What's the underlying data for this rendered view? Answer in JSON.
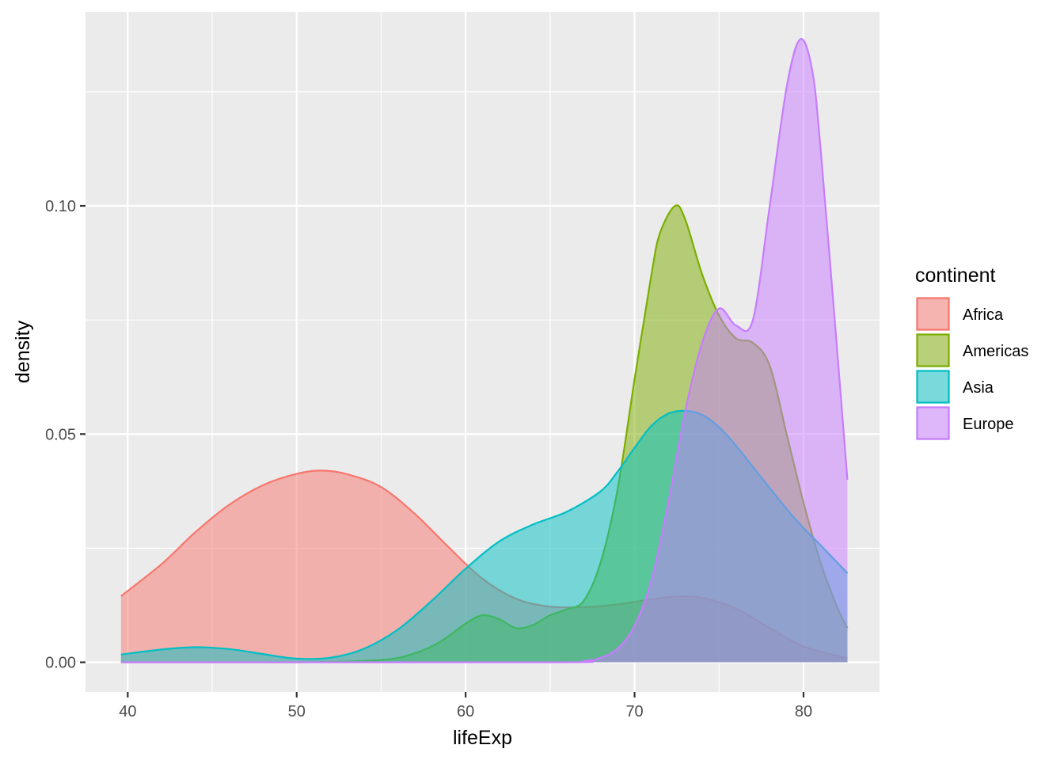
{
  "chart_data": {
    "type": "area",
    "xlabel": "lifeExp",
    "ylabel": "density",
    "xlim": [
      37.5,
      84.5
    ],
    "ylim": [
      -0.0065,
      0.1425
    ],
    "xticks": [
      40,
      50,
      60,
      70,
      80
    ],
    "yticks": [
      0.0,
      0.05,
      0.1
    ],
    "ytick_labels": [
      "0.00",
      "0.05",
      "0.10"
    ],
    "xtick_labels": [
      "40",
      "50",
      "60",
      "70",
      "80"
    ],
    "grid": true,
    "legend": {
      "title": "continent",
      "position": "right"
    },
    "fill_opacity": 0.5,
    "series": [
      {
        "name": "Africa",
        "color": "#F8766D",
        "x": [
          39.6,
          42,
          44,
          46,
          48,
          50,
          51.5,
          53,
          55,
          57,
          59,
          61,
          63,
          65,
          67,
          69,
          71,
          72.5,
          74,
          76,
          78,
          80,
          82.6
        ],
        "y": [
          0.0145,
          0.0215,
          0.0285,
          0.0345,
          0.0388,
          0.0413,
          0.042,
          0.0412,
          0.0384,
          0.0325,
          0.0252,
          0.0183,
          0.0139,
          0.0122,
          0.0121,
          0.0127,
          0.0138,
          0.0144,
          0.0141,
          0.0118,
          0.0075,
          0.0035,
          0.0009
        ]
      },
      {
        "name": "Americas",
        "color": "#7CAE00",
        "x": [
          39.6,
          50,
          55,
          57,
          58.5,
          60,
          61,
          62,
          63,
          64,
          65,
          66,
          67,
          68,
          69,
          70,
          71,
          71.5,
          72.4,
          73,
          74,
          75,
          76,
          77,
          78,
          79,
          80,
          81,
          82,
          82.6
        ],
        "y": [
          0.0,
          0.0,
          0.0005,
          0.002,
          0.0045,
          0.0085,
          0.0103,
          0.0094,
          0.0075,
          0.0082,
          0.0103,
          0.0116,
          0.0135,
          0.022,
          0.038,
          0.062,
          0.085,
          0.094,
          0.1,
          0.097,
          0.085,
          0.076,
          0.071,
          0.07,
          0.065,
          0.05,
          0.035,
          0.022,
          0.012,
          0.0075
        ]
      },
      {
        "name": "Asia",
        "color": "#00BFC4",
        "x": [
          39.6,
          42,
          44,
          46,
          48,
          50,
          52,
          54,
          56,
          58,
          60,
          62,
          64,
          66,
          68,
          69,
          70,
          71,
          72,
          73,
          74,
          75,
          76,
          77,
          78,
          79,
          80,
          81,
          82.6
        ],
        "y": [
          0.0017,
          0.0028,
          0.0033,
          0.0029,
          0.0018,
          0.0008,
          0.001,
          0.003,
          0.0072,
          0.0135,
          0.0205,
          0.0265,
          0.0302,
          0.033,
          0.0375,
          0.0418,
          0.047,
          0.0518,
          0.0545,
          0.0551,
          0.0542,
          0.0515,
          0.0475,
          0.0428,
          0.0382,
          0.0336,
          0.0294,
          0.0257,
          0.0195
        ]
      },
      {
        "name": "Europe",
        "color": "#C77CFF",
        "x": [
          39.6,
          65,
          67,
          68,
          69,
          70,
          71,
          72,
          73,
          74,
          75,
          76,
          77,
          78,
          79,
          79.8,
          80.5,
          81,
          82,
          82.6
        ],
        "y": [
          0.0,
          0.0,
          0.0003,
          0.001,
          0.003,
          0.008,
          0.018,
          0.035,
          0.055,
          0.07,
          0.0775,
          0.0738,
          0.075,
          0.1,
          0.126,
          0.1365,
          0.13,
          0.113,
          0.068,
          0.04
        ]
      }
    ]
  }
}
